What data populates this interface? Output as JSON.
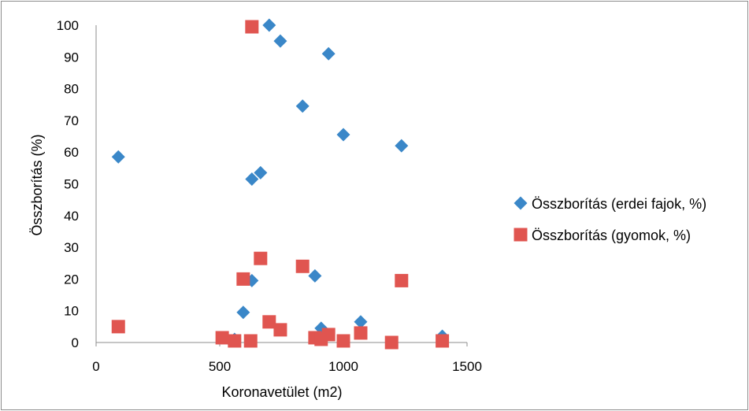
{
  "chart_data": {
    "type": "scatter",
    "title": "",
    "xlabel": "Koronavetület (m2)",
    "ylabel": "Összborítás (%)",
    "xlim": [
      0,
      1500
    ],
    "ylim": [
      0,
      100
    ],
    "x_ticks": [
      "0",
      "500",
      "1000",
      "1500"
    ],
    "y_ticks": [
      "0",
      "10",
      "20",
      "30",
      "40",
      "50",
      "60",
      "70",
      "80",
      "90",
      "100"
    ],
    "grid": false,
    "legend_position": "right",
    "series": [
      {
        "name": "Összborítás  (erdei fajok, %)",
        "color": "#3a87c8",
        "marker": "diamond",
        "points": [
          [
            90,
            58.5
          ],
          [
            700,
            100
          ],
          [
            745,
            95
          ],
          [
            940,
            91
          ],
          [
            835,
            74.5
          ],
          [
            1000,
            65.5
          ],
          [
            1235,
            62
          ],
          [
            665,
            53.5
          ],
          [
            630,
            51.5
          ],
          [
            630,
            19.5
          ],
          [
            885,
            21
          ],
          [
            595,
            9.5
          ],
          [
            1070,
            6.5
          ],
          [
            910,
            4.5
          ],
          [
            1400,
            2
          ],
          [
            560,
            1
          ],
          [
            545,
            0.5
          ]
        ]
      },
      {
        "name": "Összborítás  (gyomok, %)",
        "color": "#e05550",
        "marker": "square",
        "points": [
          [
            630,
            99.5
          ],
          [
            665,
            26.5
          ],
          [
            835,
            24
          ],
          [
            595,
            20
          ],
          [
            1235,
            19.5
          ],
          [
            90,
            5
          ],
          [
            700,
            6.5
          ],
          [
            745,
            4
          ],
          [
            1070,
            3
          ],
          [
            940,
            2.5
          ],
          [
            885,
            1.5
          ],
          [
            910,
            1
          ],
          [
            1000,
            0.5
          ],
          [
            510,
            1.5
          ],
          [
            560,
            0.5
          ],
          [
            625,
            0.5
          ],
          [
            1195,
            0
          ],
          [
            1400,
            0.5
          ]
        ]
      }
    ]
  }
}
